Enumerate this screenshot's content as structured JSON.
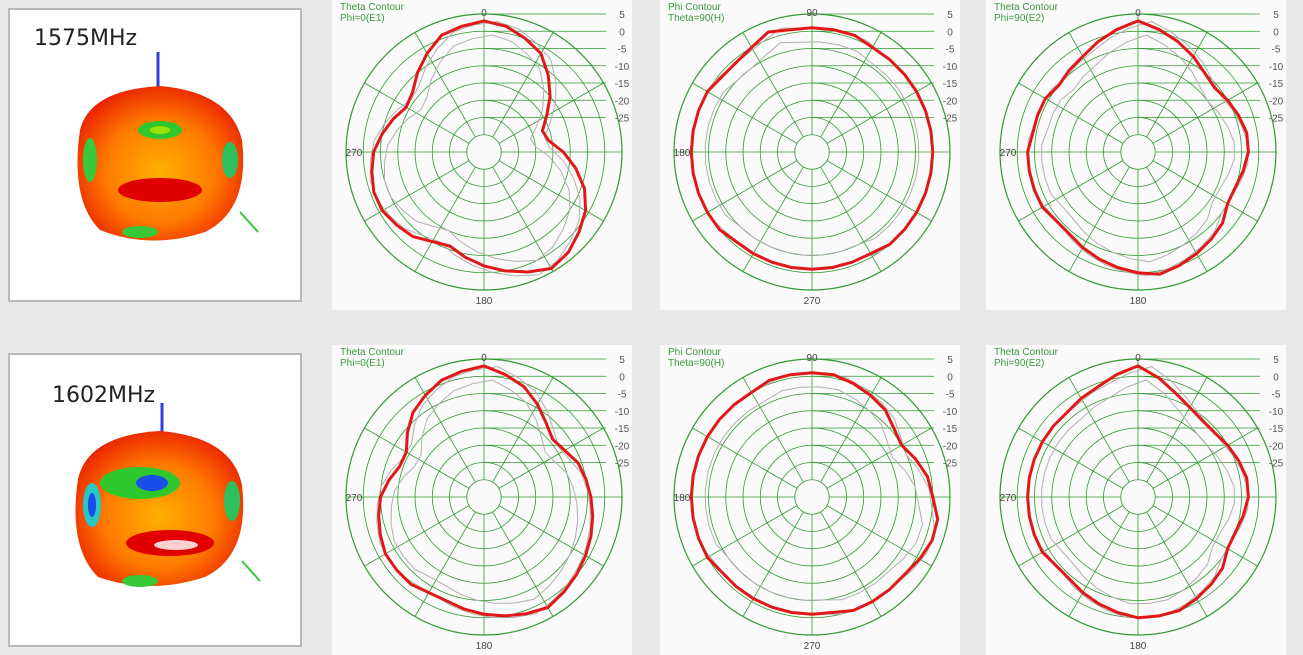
{
  "rows": [
    {
      "freq_label": "1575MHz",
      "plots": [
        {
          "title1": "Theta Contour",
          "title2": "Phi=0(E1)",
          "angle_top": "0",
          "angle_side": "270",
          "angle_bottom": "180",
          "trace": [
            3,
            2,
            0,
            -2,
            -6,
            -10,
            -14,
            -17,
            -16,
            -12,
            -8,
            -4,
            -1,
            1,
            3,
            4,
            2,
            0,
            -2,
            -4,
            -6,
            -5,
            -3,
            -2,
            -1,
            -1,
            -2,
            -3,
            -5,
            -7,
            -9,
            -8,
            -5,
            -2,
            1,
            2
          ]
        },
        {
          "title1": "Phi Contour",
          "title2": "Theta=90(H)",
          "angle_top": "90",
          "angle_side": "180",
          "angle_bottom": "270",
          "trace": [
            1,
            1,
            1,
            0,
            0,
            0,
            0,
            0,
            0,
            0,
            0,
            0,
            0,
            0,
            0,
            -1,
            -1,
            -1,
            -1,
            -1,
            -1,
            -1,
            -1,
            0,
            0,
            0,
            0,
            0,
            0,
            0,
            0,
            -1,
            -1,
            0,
            2,
            1
          ]
        },
        {
          "title1": "Theta Contour",
          "title2": "Phi=90(E2)",
          "angle_top": "0",
          "angle_side": "270",
          "angle_bottom": "180",
          "trace": [
            3,
            1,
            -1,
            -3,
            -5,
            -6,
            -5,
            -4,
            -3,
            -3,
            -4,
            -5,
            -5,
            -3,
            -2,
            -1,
            0,
            1,
            0,
            -1,
            -2,
            -3,
            -4,
            -4,
            -3,
            -3,
            -3,
            -3,
            -4,
            -4,
            -4,
            -5,
            -4,
            -3,
            -1,
            1
          ]
        }
      ]
    },
    {
      "freq_label": "1602MHz",
      "plots": [
        {
          "title1": "Theta Contour",
          "title2": "Phi=0(E1)",
          "angle_top": "0",
          "angle_side": "270",
          "angle_bottom": "180",
          "trace": [
            3,
            1,
            -1,
            -4,
            -7,
            -9,
            -8,
            -6,
            -5,
            -4,
            -3,
            -2,
            -1,
            0,
            1,
            2,
            1,
            0,
            -1,
            -2,
            -3,
            -3,
            -2,
            -2,
            -2,
            -3,
            -4,
            -5,
            -7,
            -9,
            -9,
            -6,
            -3,
            -1,
            1,
            2
          ]
        },
        {
          "title1": "Phi Contour",
          "title2": "Theta=90(H)",
          "angle_top": "90",
          "angle_side": "180",
          "angle_bottom": "270",
          "trace": [
            1,
            1,
            0,
            -1,
            -2,
            -4,
            -5,
            -3,
            -1,
            0,
            2,
            2,
            1,
            0,
            0,
            0,
            0,
            -1,
            -1,
            -1,
            -1,
            -1,
            -1,
            -1,
            0,
            0,
            0,
            0,
            0,
            0,
            0,
            0,
            0,
            0,
            1,
            1
          ]
        },
        {
          "title1": "Theta Contour",
          "title2": "Phi=90(E2)",
          "angle_top": "0",
          "angle_side": "270",
          "angle_bottom": "180",
          "trace": [
            3,
            0,
            -3,
            -5,
            -6,
            -6,
            -5,
            -4,
            -3,
            -3,
            -4,
            -5,
            -5,
            -3,
            -2,
            -1,
            0,
            0,
            0,
            -1,
            -2,
            -3,
            -4,
            -4,
            -3,
            -3,
            -3,
            -3,
            -3,
            -3,
            -3,
            -3,
            -3,
            -2,
            -1,
            1
          ]
        }
      ]
    }
  ],
  "db_ticks": [
    "5",
    "0",
    "-5",
    "-10",
    "-15",
    "-20",
    "-25"
  ],
  "colors": {
    "grid": "#2f9a2f",
    "trace": "#e01818",
    "ghost": "#b0b0b0",
    "axis_z": "#3a3ad8",
    "axis_diag": "#3ac63a"
  },
  "chart_data": [
    {
      "type": "polar",
      "frequency": "1575MHz",
      "title": "Theta Contour Phi=0(E1)",
      "r_ticks": [
        5,
        0,
        -5,
        -10,
        -15,
        -20,
        -25
      ],
      "angle_labels": [
        "0",
        "270",
        "180"
      ],
      "step_deg": 10,
      "values": [
        3,
        2,
        0,
        -2,
        -6,
        -10,
        -14,
        -17,
        -16,
        -12,
        -8,
        -4,
        -1,
        1,
        3,
        4,
        2,
        0,
        -2,
        -4,
        -6,
        -5,
        -3,
        -2,
        -1,
        -1,
        -2,
        -3,
        -5,
        -7,
        -9,
        -8,
        -5,
        -2,
        1,
        2
      ]
    },
    {
      "type": "polar",
      "frequency": "1575MHz",
      "title": "Phi Contour Theta=90(H)",
      "r_ticks": [
        5,
        0,
        -5,
        -10,
        -15,
        -20,
        -25
      ],
      "angle_labels": [
        "90",
        "180",
        "270"
      ],
      "step_deg": 10,
      "values": [
        1,
        1,
        1,
        0,
        0,
        0,
        0,
        0,
        0,
        0,
        0,
        0,
        0,
        0,
        0,
        -1,
        -1,
        -1,
        -1,
        -1,
        -1,
        -1,
        -1,
        0,
        0,
        0,
        0,
        0,
        0,
        0,
        0,
        -1,
        -1,
        0,
        2,
        1
      ]
    },
    {
      "type": "polar",
      "frequency": "1575MHz",
      "title": "Theta Contour Phi=90(E2)",
      "r_ticks": [
        5,
        0,
        -5,
        -10,
        -15,
        -20,
        -25
      ],
      "angle_labels": [
        "0",
        "270",
        "180"
      ],
      "step_deg": 10,
      "values": [
        3,
        1,
        -1,
        -3,
        -5,
        -6,
        -5,
        -4,
        -3,
        -3,
        -4,
        -5,
        -5,
        -3,
        -2,
        -1,
        0,
        1,
        0,
        -1,
        -2,
        -3,
        -4,
        -4,
        -3,
        -3,
        -3,
        -3,
        -4,
        -4,
        -4,
        -5,
        -4,
        -3,
        -1,
        1
      ]
    },
    {
      "type": "polar",
      "frequency": "1602MHz",
      "title": "Theta Contour Phi=0(E1)",
      "r_ticks": [
        5,
        0,
        -5,
        -10,
        -15,
        -20,
        -25
      ],
      "angle_labels": [
        "0",
        "270",
        "180"
      ],
      "step_deg": 10,
      "values": [
        3,
        1,
        -1,
        -4,
        -7,
        -9,
        -8,
        -6,
        -5,
        -4,
        -3,
        -2,
        -1,
        0,
        1,
        2,
        1,
        0,
        -1,
        -2,
        -3,
        -3,
        -2,
        -2,
        -2,
        -3,
        -4,
        -5,
        -7,
        -9,
        -9,
        -6,
        -3,
        -1,
        1,
        2
      ]
    },
    {
      "type": "polar",
      "frequency": "1602MHz",
      "title": "Phi Contour Theta=90(H)",
      "r_ticks": [
        5,
        0,
        -5,
        -10,
        -15,
        -20,
        -25
      ],
      "angle_labels": [
        "90",
        "180",
        "270"
      ],
      "step_deg": 10,
      "values": [
        1,
        1,
        0,
        -1,
        -2,
        -4,
        -5,
        -3,
        -1,
        0,
        2,
        2,
        1,
        0,
        0,
        0,
        0,
        -1,
        -1,
        -1,
        -1,
        -1,
        -1,
        -1,
        0,
        0,
        0,
        0,
        0,
        0,
        0,
        0,
        0,
        0,
        1,
        1
      ]
    },
    {
      "type": "polar",
      "frequency": "1602MHz",
      "title": "Theta Contour Phi=90(E2)",
      "r_ticks": [
        5,
        0,
        -5,
        -10,
        -15,
        -20,
        -25
      ],
      "angle_labels": [
        "0",
        "270",
        "180"
      ],
      "step_deg": 10,
      "values": [
        3,
        0,
        -3,
        -5,
        -6,
        -6,
        -5,
        -4,
        -3,
        -3,
        -4,
        -5,
        -5,
        -3,
        -2,
        -1,
        0,
        0,
        0,
        -1,
        -2,
        -3,
        -4,
        -4,
        -3,
        -3,
        -3,
        -3,
        -3,
        -3,
        -3,
        -3,
        -3,
        -2,
        -1,
        1
      ]
    }
  ]
}
